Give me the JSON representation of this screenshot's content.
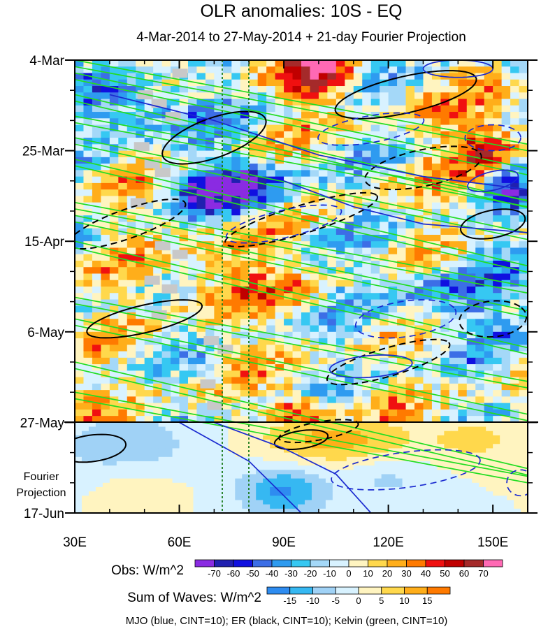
{
  "chart_data": {
    "type": "heatmap",
    "title": "OLR anomalies: 10S - EQ",
    "subtitle": "4-Mar-2014 to 27-May-2014 + 21-day Fourier Projection",
    "x_ticks": [
      "30E",
      "60E",
      "90E",
      "120E",
      "150E"
    ],
    "x_tick_values": [
      30,
      60,
      90,
      120,
      150
    ],
    "xlim": [
      30,
      160
    ],
    "y_ticks": [
      "4-Mar",
      "25-Mar",
      "15-Apr",
      "6-May",
      "27-May",
      "17-Jun"
    ],
    "y_tick_days": [
      0,
      21,
      42,
      63,
      84,
      105
    ],
    "ylim_days": [
      0,
      105
    ],
    "y_axis_reversed": true,
    "projection_label_lines": [
      "Fourier",
      "Projection"
    ],
    "projection_start": "27-May",
    "reference_lines_lon": [
      72.5,
      80
    ],
    "obs_colorbar": {
      "label": "Obs: W/m^2",
      "levels": [
        -70,
        -60,
        -50,
        -40,
        -30,
        -20,
        -10,
        0,
        10,
        20,
        30,
        40,
        50,
        60,
        70
      ],
      "colors": [
        "#8a2be2",
        "#2020b0",
        "#1010e0",
        "#3c6ee6",
        "#2e9bf0",
        "#36c8f2",
        "#a4d8f8",
        "#d8f2ff",
        "#fff4c0",
        "#ffd84c",
        "#ffae1a",
        "#ff7a00",
        "#f01010",
        "#c00000",
        "#a52a2a",
        "#ff69b4"
      ]
    },
    "waves_colorbar": {
      "label": "Sum of Waves: W/m^2",
      "levels": [
        -15,
        -10,
        -5,
        0,
        5,
        10,
        15
      ],
      "colors": [
        "#2e8cf0",
        "#36b8f2",
        "#a0d2f6",
        "#d8f2ff",
        "#fff4c0",
        "#ffd84c",
        "#ffae1a",
        "#ff7a00"
      ]
    },
    "contours": [
      {
        "name": "MJO",
        "color": "#1a2ad0",
        "cint": 10
      },
      {
        "name": "ER",
        "color": "#000000",
        "cint": 10
      },
      {
        "name": "Kelvin",
        "color": "#22dd22",
        "cint": 10
      }
    ],
    "footer": "MJO (blue, CINT=10); ER (black, CINT=10); Kelvin (green, CINT=10)",
    "grid": false
  }
}
